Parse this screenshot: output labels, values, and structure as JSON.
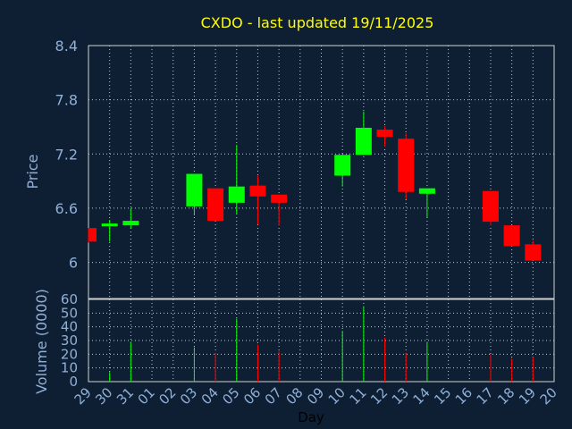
{
  "chart_data": {
    "type": "candlestick",
    "title": "CXDO - last updated 19/11/2025",
    "xlabel": "Day",
    "price_panel": {
      "ylabel": "Price",
      "ylim": [
        5.6,
        8.4
      ],
      "yticks": [
        "6",
        "6.6",
        "7.2",
        "7.8",
        "8.4"
      ],
      "ytick_values": [
        6.0,
        6.6,
        7.2,
        7.8,
        8.4
      ]
    },
    "volume_panel": {
      "ylabel": "Volume (0000)",
      "ylim": [
        0,
        60
      ],
      "yticks": [
        "0",
        "10",
        "20",
        "30",
        "40",
        "50",
        "60"
      ],
      "ytick_values": [
        0,
        10,
        20,
        30,
        40,
        50,
        60
      ]
    },
    "x_ticks": [
      "29",
      "30",
      "31",
      "01",
      "02",
      "03",
      "04",
      "05",
      "06",
      "07",
      "08",
      "09",
      "10",
      "11",
      "12",
      "13",
      "14",
      "15",
      "16",
      "17",
      "18",
      "19",
      "20"
    ],
    "grid": true,
    "colors": {
      "up": "#00ff00",
      "down": "#ff0000",
      "title": "#ffff00",
      "axis_text": "#8fb0d8",
      "background": "#0f1f33",
      "grid": "#c8c8c8"
    },
    "candles": [
      {
        "day": "29",
        "open": 6.38,
        "close": 6.23,
        "high": 6.38,
        "low": 6.22,
        "volume": 0
      },
      {
        "day": "30",
        "open": 6.4,
        "close": 6.43,
        "high": 6.47,
        "low": 6.23,
        "volume": 7
      },
      {
        "day": "31",
        "open": 6.41,
        "close": 6.46,
        "high": 6.6,
        "low": 6.38,
        "volume": 29
      },
      {
        "day": "03",
        "open": 6.62,
        "close": 6.98,
        "high": 6.98,
        "low": 6.52,
        "volume": 25
      },
      {
        "day": "04",
        "open": 6.82,
        "close": 6.46,
        "high": 6.82,
        "low": 6.46,
        "volume": 21
      },
      {
        "day": "05",
        "open": 6.66,
        "close": 6.84,
        "high": 7.3,
        "low": 6.53,
        "volume": 46
      },
      {
        "day": "06",
        "open": 6.85,
        "close": 6.73,
        "high": 6.96,
        "low": 6.42,
        "volume": 27
      },
      {
        "day": "07",
        "open": 6.75,
        "close": 6.66,
        "high": 6.75,
        "low": 6.41,
        "volume": 22
      },
      {
        "day": "10",
        "open": 6.96,
        "close": 7.19,
        "high": 7.19,
        "low": 6.84,
        "volume": 37
      },
      {
        "day": "11",
        "open": 7.19,
        "close": 7.49,
        "high": 7.67,
        "low": 7.19,
        "volume": 55
      },
      {
        "day": "12",
        "open": 7.47,
        "close": 7.39,
        "high": 7.51,
        "low": 7.28,
        "volume": 32
      },
      {
        "day": "13",
        "open": 7.37,
        "close": 6.78,
        "high": 7.43,
        "low": 6.7,
        "volume": 21
      },
      {
        "day": "14",
        "open": 6.76,
        "close": 6.82,
        "high": 6.82,
        "low": 6.5,
        "volume": 29
      },
      {
        "day": "17",
        "open": 6.79,
        "close": 6.45,
        "high": 6.79,
        "low": 6.41,
        "volume": 20
      },
      {
        "day": "18",
        "open": 6.41,
        "close": 6.18,
        "high": 6.41,
        "low": 6.18,
        "volume": 17
      },
      {
        "day": "19",
        "open": 6.2,
        "close": 6.02,
        "high": 6.24,
        "low": 6.02,
        "volume": 18
      }
    ]
  }
}
